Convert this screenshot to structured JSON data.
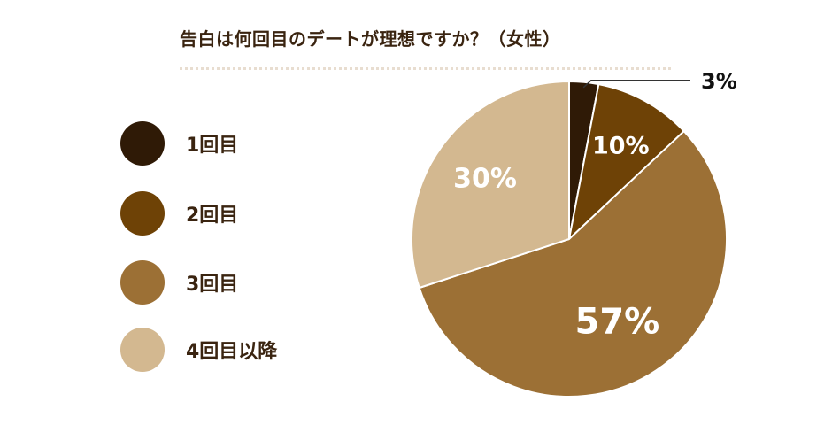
{
  "chart_data": {
    "type": "pie",
    "title": "告白は何回目のデートが理想ですか？（女性）",
    "legend_position": "left",
    "slices": [
      {
        "label": "1回目",
        "value": 3,
        "display": "3%",
        "color": "#2f1a06"
      },
      {
        "label": "2回目",
        "value": 10,
        "display": "10%",
        "color": "#6e4206"
      },
      {
        "label": "3回目",
        "value": 57,
        "display": "57%",
        "color": "#9c7035"
      },
      {
        "label": "4回目以降",
        "value": 30,
        "display": "30%",
        "color": "#d3b890"
      }
    ]
  }
}
